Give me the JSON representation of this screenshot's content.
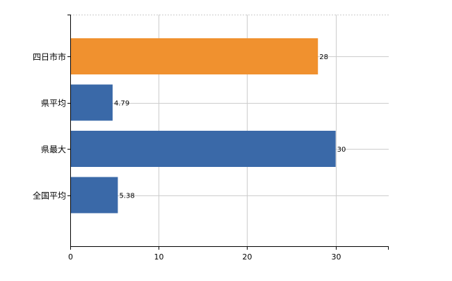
{
  "chart_data": {
    "type": "bar",
    "orientation": "horizontal",
    "categories": [
      "四日市市",
      "県平均",
      "県最大",
      "全国平均"
    ],
    "values": [
      28,
      4.79,
      30,
      5.38
    ],
    "data_labels": [
      "28",
      "4.79",
      "30",
      "5.38"
    ],
    "bar_colors": [
      "#F0912F",
      "#3A69A8",
      "#3A69A8",
      "#3A69A8"
    ],
    "xlim": [
      0,
      36
    ],
    "x_ticks": [
      0,
      10,
      20,
      30
    ],
    "x_tick_labels": [
      "0",
      "10",
      "20",
      "30"
    ],
    "grid": true,
    "grid_color": "#cccccc",
    "title": "",
    "xlabel": "",
    "ylabel": ""
  }
}
